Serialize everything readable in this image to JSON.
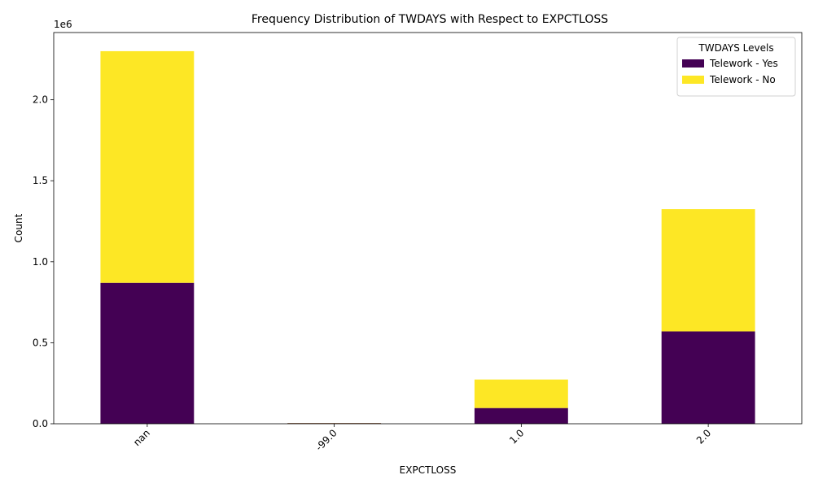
{
  "chart_data": {
    "type": "bar",
    "stacked": true,
    "title": "Frequency Distribution of TWDAYS with Respect to EXPCTLOSS",
    "xlabel": "EXPCTLOSS",
    "ylabel": "Count",
    "y_offset_label": "1e6",
    "categories": [
      "nan",
      "-99.0",
      "1.0",
      "2.0"
    ],
    "series": [
      {
        "name": "Telework - Yes",
        "color": "#440154",
        "values": [
          870000,
          4000,
          97000,
          570000
        ]
      },
      {
        "name": "Telework - No",
        "color": "#fde725",
        "values": [
          1430000,
          1000,
          176000,
          755000
        ]
      }
    ],
    "ylim": [
      0,
      2415000
    ],
    "y_ticks": [
      0,
      500000,
      1000000,
      1500000,
      2000000
    ],
    "y_tick_labels": [
      "0.0",
      "0.5",
      "1.0",
      "1.5",
      "2.0"
    ],
    "legend": {
      "title": "TWDAYS Levels",
      "placement": "top-right"
    },
    "grid": false
  }
}
